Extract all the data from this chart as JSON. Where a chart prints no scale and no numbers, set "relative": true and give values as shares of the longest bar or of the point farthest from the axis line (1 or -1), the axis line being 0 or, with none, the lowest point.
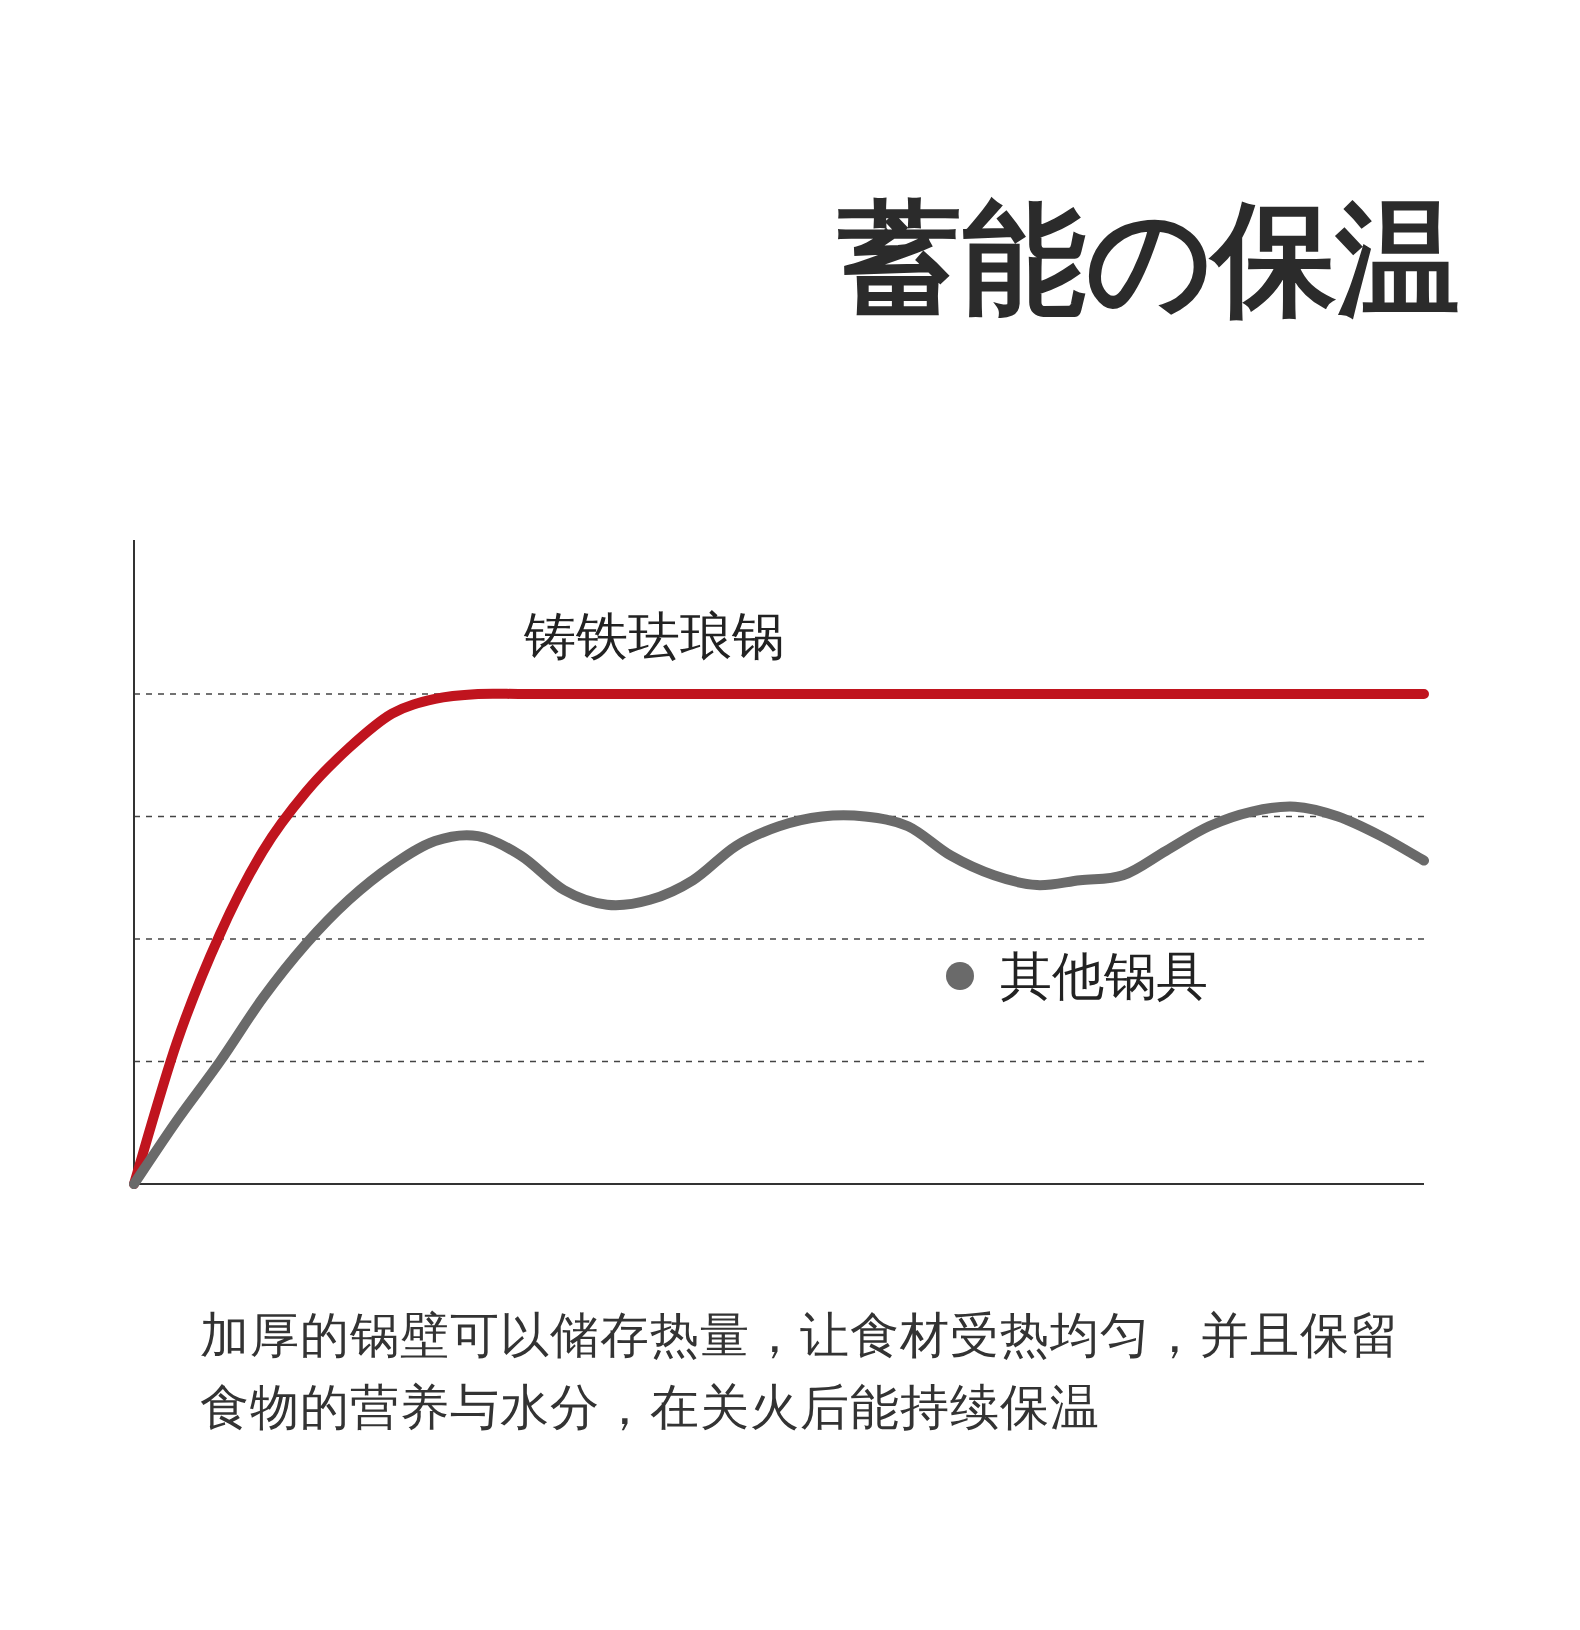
{
  "chart_data": {
    "type": "line",
    "title": "蓄能の保温",
    "relative": true,
    "grid": "y",
    "line_style": "solid",
    "categories": [
      null,
      null,
      null,
      null,
      null,
      null,
      null,
      null,
      null,
      null,
      null,
      null,
      null,
      null,
      null,
      null,
      null,
      null,
      null,
      null,
      null,
      null,
      null,
      null,
      null,
      null,
      null,
      null,
      null,
      null,
      null
    ],
    "series": [
      {
        "name": "铸铁珐琅锅",
        "color": "#c0141e",
        "values": [
          0,
          0.29,
          0.51,
          0.68,
          0.8,
          0.89,
          0.96,
          0.99,
          1,
          1,
          1,
          1,
          1,
          1,
          1,
          1,
          1,
          1,
          1,
          1,
          1,
          1,
          1,
          1,
          1,
          1,
          1,
          1,
          1,
          1,
          1
        ]
      },
      {
        "name": "其他锅具",
        "color": "#6a6a6a",
        "values": [
          0,
          0.13,
          0.25,
          0.38,
          0.49,
          0.58,
          0.65,
          0.7,
          0.71,
          0.67,
          0.6,
          0.57,
          0.58,
          0.62,
          0.69,
          0.73,
          0.75,
          0.75,
          0.73,
          0.67,
          0.63,
          0.61,
          0.62,
          0.63,
          0.68,
          0.73,
          0.76,
          0.77,
          0.75,
          0.71,
          0.66
        ]
      }
    ],
    "annotations": [
      "加厚的锅壁可以储存热量，让食材受热均匀，并且保留食物的营养与水分，在关火后能持续保温"
    ]
  }
}
